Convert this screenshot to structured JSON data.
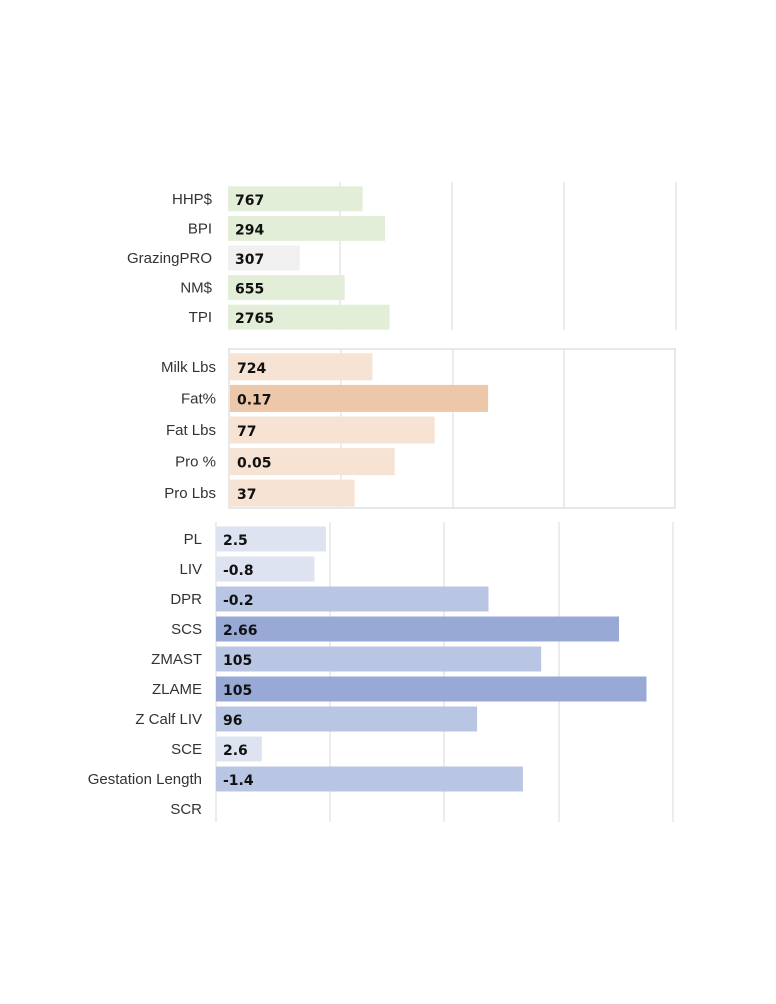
{
  "chart_data": [
    {
      "type": "bar",
      "orientation": "horizontal",
      "categories": [
        "HHP$",
        "BPI",
        "GrazingPRO",
        "NM$",
        "TPI"
      ],
      "values": [
        767,
        294,
        307,
        655,
        2765
      ],
      "value_labels": [
        "767",
        "294",
        "307",
        "655",
        "2765"
      ],
      "bar_fill_fraction": [
        0.3,
        0.35,
        0.16,
        0.26,
        0.36
      ],
      "colors": [
        "#e2eed8",
        "#e2eed8",
        "#f0f0f0",
        "#e2eed8",
        "#e2eed8"
      ],
      "grid": true,
      "legend": "none"
    },
    {
      "type": "bar",
      "orientation": "horizontal",
      "categories": [
        "Milk Lbs",
        "Fat%",
        "Fat Lbs",
        "Pro %",
        "Pro Lbs"
      ],
      "values": [
        724,
        0.17,
        77,
        0.05,
        37
      ],
      "value_labels": [
        "724",
        "0.17",
        "77",
        "0.05",
        "37"
      ],
      "bar_fill_fraction": [
        0.32,
        0.58,
        0.46,
        0.37,
        0.28
      ],
      "colors": [
        "#f6e3d3",
        "#ecc7a9",
        "#f6e3d3",
        "#f6e3d3",
        "#f6e3d3"
      ],
      "grid": true,
      "legend": "none"
    },
    {
      "type": "bar",
      "orientation": "horizontal",
      "categories": [
        "PL",
        "LIV",
        "DPR",
        "SCS",
        "ZMAST",
        "ZLAME",
        "Z Calf LIV",
        "SCE",
        "Gestation Length",
        "SCR"
      ],
      "values": [
        2.5,
        -0.8,
        -0.2,
        2.66,
        105,
        105,
        96,
        2.6,
        -1.4,
        null
      ],
      "value_labels": [
        "2.5",
        "-0.8",
        "-0.2",
        "2.66",
        "105",
        "105",
        "96",
        "2.6",
        "-1.4",
        ""
      ],
      "bar_fill_fraction": [
        0.24,
        0.215,
        0.595,
        0.88,
        0.71,
        0.94,
        0.57,
        0.1,
        0.67,
        0
      ],
      "colors": [
        "#dde3f1",
        "#dde3f1",
        "#b8c5e3",
        "#97a9d4",
        "#b8c5e3",
        "#97a9d4",
        "#b8c5e3",
        "#dde3f1",
        "#b8c5e3",
        "#b8c5e3"
      ],
      "grid": true,
      "legend": "none"
    }
  ]
}
